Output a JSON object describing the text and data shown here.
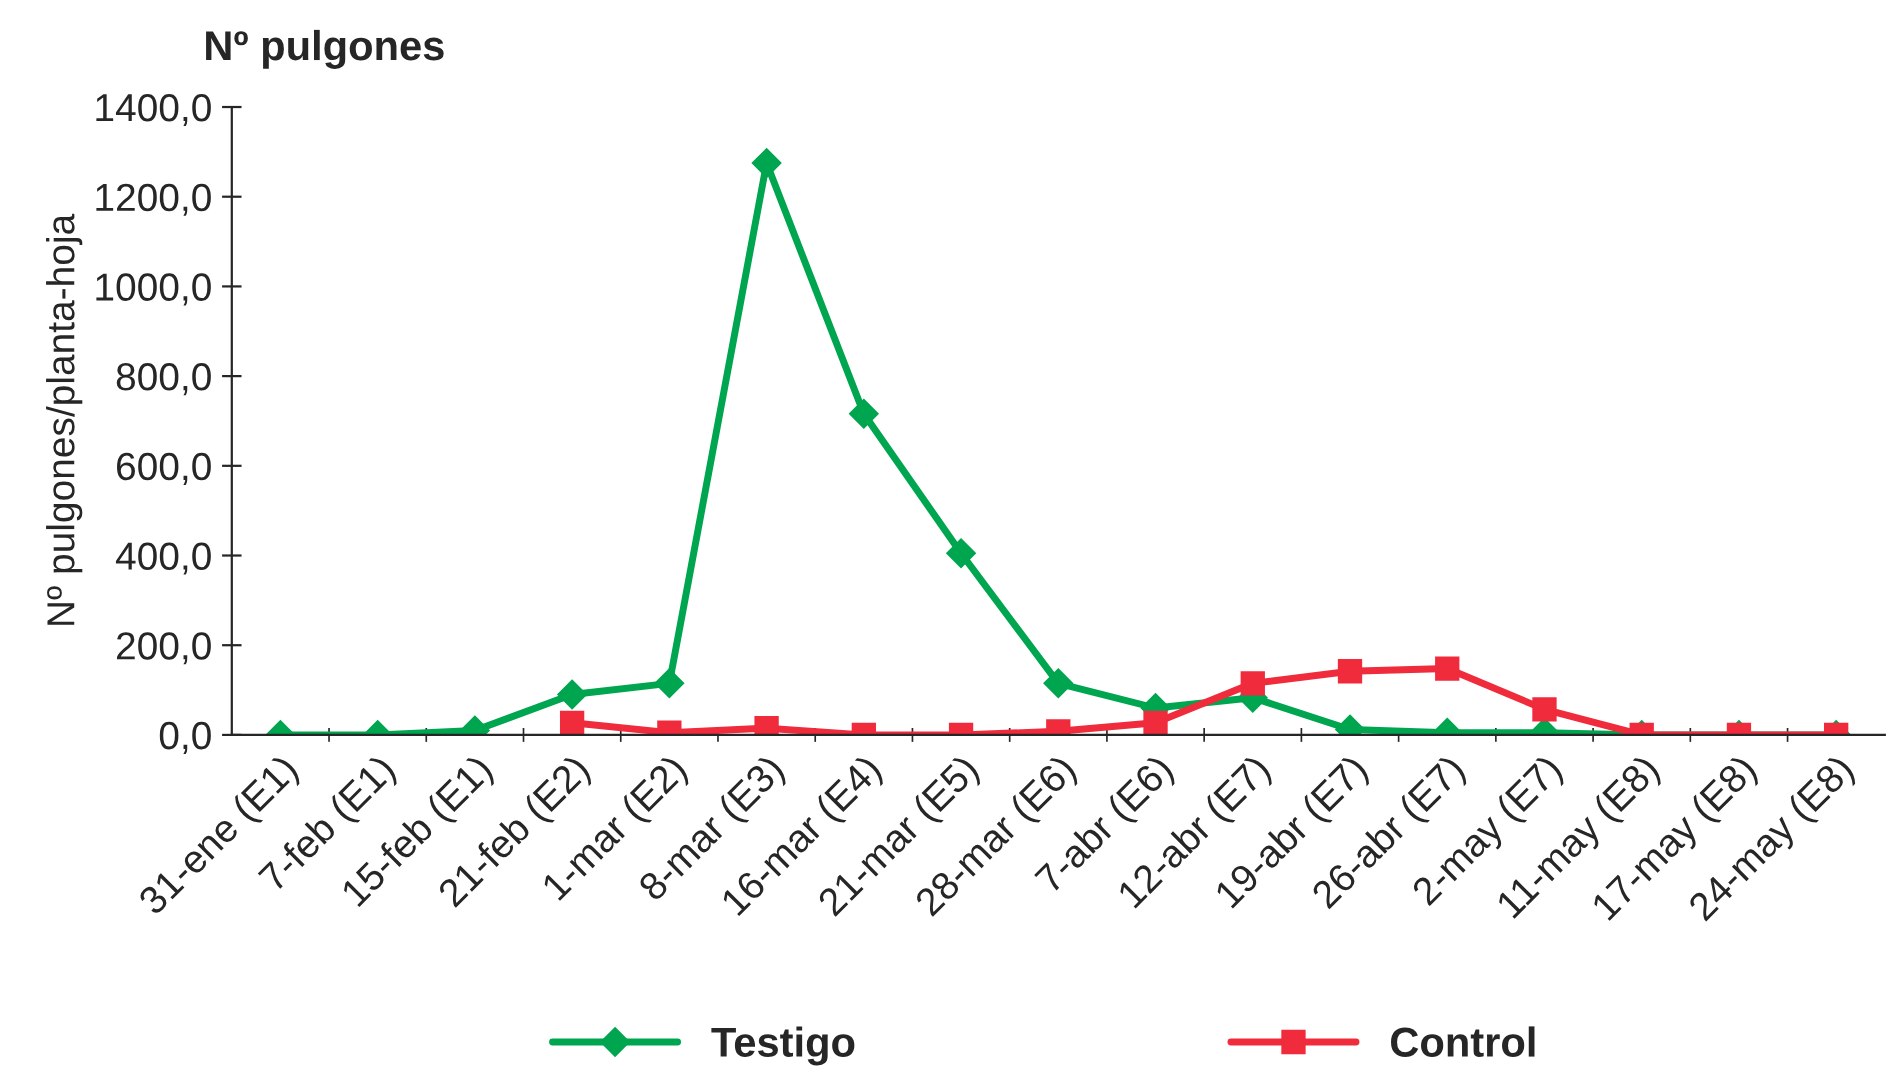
{
  "chart_data": {
    "type": "line",
    "title": "Nº pulgones",
    "ylabel": "Nº pulgones/planta-hoja",
    "categories": [
      "31-ene (E1)",
      "7-feb (E1)",
      "15-feb (E1)",
      "21-feb (E2)",
      "1-mar (E2)",
      "8-mar (E3)",
      "16-mar (E4)",
      "21-mar (E5)",
      "28-mar (E6)",
      "7-abr (E6)",
      "12-abr (E7)",
      "19-abr (E7)",
      "26-abr (E7)",
      "2-may (E7)",
      "11-may (E8)",
      "17-may (E8)",
      "24-may (E8)"
    ],
    "series": [
      {
        "name": "Testigo",
        "color": "#00a550",
        "marker": "diamond",
        "values": [
          0,
          0,
          10,
          90,
          115,
          1275,
          716,
          405,
          115,
          60,
          83,
          12,
          5,
          5,
          0,
          0,
          0
        ]
      },
      {
        "name": "Control",
        "color": "#ef2b3c",
        "marker": "square",
        "values": [
          null,
          null,
          null,
          27,
          5,
          15,
          0,
          0,
          8,
          27,
          115,
          142,
          148,
          57,
          0,
          0,
          0
        ]
      }
    ],
    "ylim": [
      0,
      1400
    ],
    "yticks": [
      {
        "value": 0,
        "label": "0,0"
      },
      {
        "value": 200,
        "label": "200,0"
      },
      {
        "value": 400,
        "label": "400,0"
      },
      {
        "value": 600,
        "label": "600,0"
      },
      {
        "value": 800,
        "label": "800,0"
      },
      {
        "value": 1000,
        "label": "1000,0"
      },
      {
        "value": 1200,
        "label": "1200,0"
      },
      {
        "value": 1400,
        "label": "1400,0"
      }
    ],
    "grid": false,
    "legend": "bottom",
    "line_style": "solid"
  }
}
